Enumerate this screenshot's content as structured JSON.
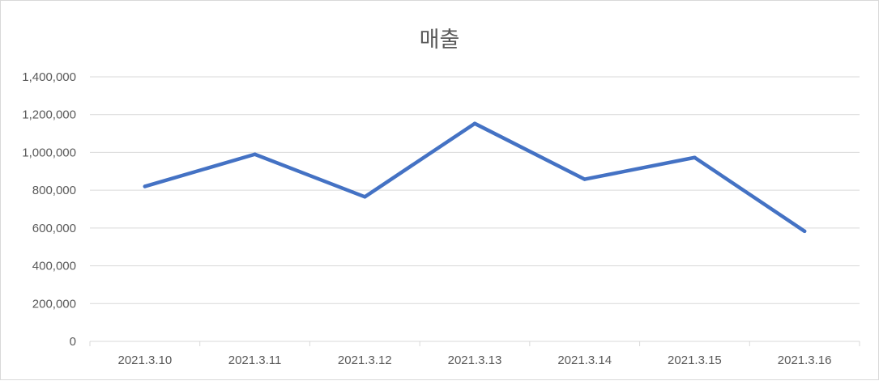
{
  "chart_data": {
    "type": "line",
    "title": "매출",
    "categories": [
      "2021.3.10",
      "2021.3.11",
      "2021.3.12",
      "2021.3.13",
      "2021.3.14",
      "2021.3.15",
      "2021.3.16"
    ],
    "series": [
      {
        "values": [
          820000,
          990000,
          765000,
          1153000,
          858000,
          973000,
          583000
        ]
      }
    ],
    "yticks": [
      "0",
      "200,000",
      "400,000",
      "600,000",
      "800,000",
      "1,000,000",
      "1,200,000",
      "1,400,000"
    ],
    "ylim": [
      0,
      1400000
    ],
    "grid": true,
    "legend": "none",
    "line_color": "#4472c4",
    "grid_color": "#d9d9d9"
  }
}
